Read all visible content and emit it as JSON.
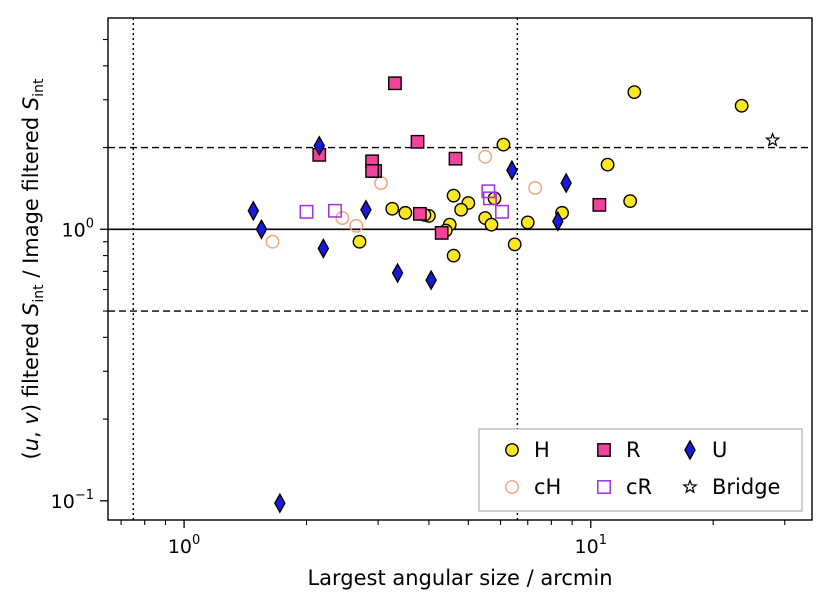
{
  "chart_data": {
    "type": "scatter",
    "xscale": "log",
    "yscale": "log",
    "xlim": [
      0.65,
      35
    ],
    "ylim": [
      0.085,
      6.0
    ],
    "xlabel": "Largest angular size / arcmin",
    "ylabel_parts": [
      "(",
      "u",
      ", ",
      "v",
      ") filtered ",
      "S",
      "int",
      " / Image filtered ",
      "S",
      "int"
    ],
    "x_ticks": [
      {
        "value": 1,
        "base": "10",
        "exp": "0"
      },
      {
        "value": 10,
        "base": "10",
        "exp": "1"
      }
    ],
    "y_ticks": [
      {
        "value": 0.1,
        "base": "10",
        "exp": "−1"
      },
      {
        "value": 1,
        "base": "10",
        "exp": "0"
      }
    ],
    "x_minor_ticks": [
      0.7,
      0.8,
      0.9,
      2,
      3,
      4,
      5,
      6,
      7,
      8,
      9,
      20,
      30
    ],
    "y_minor_ticks": [
      0.2,
      0.3,
      0.4,
      0.5,
      0.6,
      0.7,
      0.8,
      0.9,
      2,
      3,
      4,
      5
    ],
    "reference_lines": [
      {
        "orientation": "horizontal",
        "value": 1.0,
        "style": "solid"
      },
      {
        "orientation": "horizontal",
        "value": 2.0,
        "style": "dashed"
      },
      {
        "orientation": "horizontal",
        "value": 0.5,
        "style": "dashed"
      },
      {
        "orientation": "vertical",
        "value": 0.75,
        "style": "dotted"
      },
      {
        "orientation": "vertical",
        "value": 6.6,
        "style": "dotted"
      }
    ],
    "legend_position": "lower-right",
    "series": [
      {
        "name": "H",
        "marker": "circle",
        "filled": true,
        "fill": "#fde725",
        "stroke": "#000000",
        "points": [
          [
            12.8,
            3.2
          ],
          [
            23.5,
            2.85
          ],
          [
            6.1,
            2.05
          ],
          [
            11,
            1.73
          ],
          [
            12.5,
            1.27
          ],
          [
            8.5,
            1.15
          ],
          [
            7.0,
            1.06
          ],
          [
            6.5,
            0.88
          ],
          [
            4.6,
            1.33
          ],
          [
            5.0,
            1.25
          ],
          [
            4.8,
            1.18
          ],
          [
            5.8,
            1.3
          ],
          [
            5.5,
            1.1
          ],
          [
            5.7,
            1.04
          ],
          [
            4.5,
            1.04
          ],
          [
            4.0,
            1.12
          ],
          [
            3.5,
            1.15
          ],
          [
            3.25,
            1.19
          ],
          [
            3.9,
            1.13
          ],
          [
            4.4,
            0.99
          ],
          [
            4.6,
            0.8
          ],
          [
            2.7,
            0.9
          ]
        ]
      },
      {
        "name": "cH",
        "marker": "circle",
        "filled": false,
        "fill": "none",
        "stroke": "#f4a582",
        "points": [
          [
            5.5,
            1.85
          ],
          [
            7.3,
            1.42
          ],
          [
            3.05,
            1.48
          ],
          [
            2.45,
            1.1
          ],
          [
            2.65,
            1.03
          ],
          [
            1.65,
            0.9
          ]
        ]
      },
      {
        "name": "R",
        "marker": "square",
        "filled": true,
        "fill": "#f0449a",
        "stroke": "#000000",
        "points": [
          [
            3.3,
            3.45
          ],
          [
            3.75,
            2.1
          ],
          [
            4.65,
            1.82
          ],
          [
            2.15,
            1.88
          ],
          [
            2.9,
            1.78
          ],
          [
            2.95,
            1.64
          ],
          [
            2.9,
            1.64
          ],
          [
            3.8,
            1.14
          ],
          [
            4.3,
            0.97
          ],
          [
            10.5,
            1.23
          ]
        ]
      },
      {
        "name": "cR",
        "marker": "square",
        "filled": false,
        "fill": "none",
        "stroke": "#a030e0",
        "points": [
          [
            5.6,
            1.38
          ],
          [
            5.65,
            1.3
          ],
          [
            6.05,
            1.16
          ],
          [
            2.0,
            1.16
          ],
          [
            2.35,
            1.17
          ]
        ]
      },
      {
        "name": "U",
        "marker": "diamond",
        "filled": true,
        "fill": "#1a1add",
        "stroke": "#000000",
        "points": [
          [
            2.15,
            2.03
          ],
          [
            6.4,
            1.65
          ],
          [
            8.7,
            1.48
          ],
          [
            8.3,
            1.07
          ],
          [
            1.48,
            1.17
          ],
          [
            1.55,
            1.0
          ],
          [
            2.8,
            1.18
          ],
          [
            2.2,
            0.85
          ],
          [
            3.35,
            0.69
          ],
          [
            4.05,
            0.65
          ],
          [
            1.72,
            0.098
          ]
        ]
      },
      {
        "name": "Bridge",
        "marker": "star",
        "filled": false,
        "fill": "#ffffff",
        "stroke": "#000000",
        "points": [
          [
            28,
            2.13
          ]
        ]
      }
    ]
  }
}
